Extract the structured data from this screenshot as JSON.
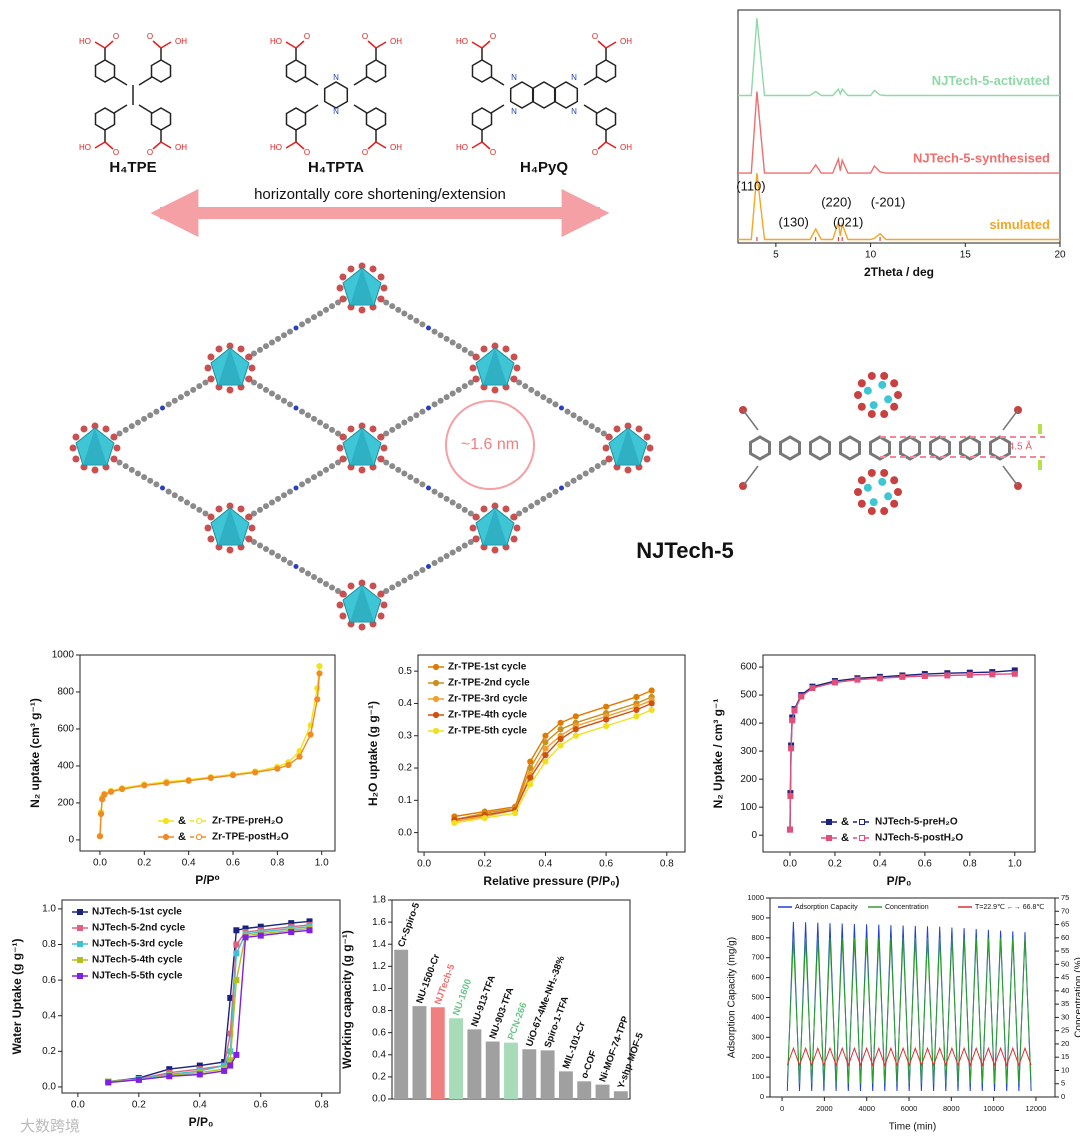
{
  "figure": {
    "molecules": [
      "H₄TPE",
      "H₄TPTA",
      "H₄PyQ"
    ],
    "acid_left": "HO",
    "acid_right": "OH",
    "nitrogen": "N",
    "arrow_text": "horizontally core shortening/extension",
    "pore_size": "~1.6 nm",
    "framework_name": "NJTech-5",
    "distance": "4.5 Å",
    "watermark": "大数跨境"
  },
  "chart_data": [
    {
      "type": "line",
      "xlabel": "2Theta / deg",
      "xlim": [
        3,
        20
      ],
      "xticks": [
        5,
        10,
        15,
        20
      ],
      "ylim": [
        0,
        100
      ],
      "x": [
        3,
        3.7,
        4.0,
        4.4,
        6.8,
        7.1,
        7.4,
        8.0,
        8.3,
        8.4,
        8.5,
        8.8,
        10.0,
        10.2,
        10.5,
        10.8,
        13,
        20
      ],
      "series": [
        {
          "name": "NJTech-5-activated",
          "color": "#8fd9a8",
          "values": [
            63.3,
            63.3,
            96.5,
            63.3,
            63.3,
            65,
            63.3,
            63.3,
            66,
            64,
            66,
            63.3,
            63.3,
            65.5,
            63.5,
            63.3,
            63.3,
            63.3
          ]
        },
        {
          "name": "NJTech-5-synthesised",
          "color": "#ef6f6f",
          "values": [
            30,
            30,
            65,
            30,
            30,
            33.5,
            30,
            30,
            36,
            31,
            35.5,
            30,
            30,
            33,
            30.5,
            30,
            30,
            30
          ]
        },
        {
          "name": "simulated",
          "color": "#f5a623",
          "values": [
            1.5,
            1.5,
            30,
            1.5,
            1.5,
            6,
            1.5,
            1.5,
            9,
            3,
            8,
            1.5,
            1.5,
            2,
            4,
            1.5,
            1.5,
            1.5
          ]
        }
      ],
      "annotations": [
        {
          "text": "(110)",
          "x": 4.0
        },
        {
          "text": "(130)",
          "x": 7.1
        },
        {
          "text": "(220)",
          "x": 8.3
        },
        {
          "text": "(021)",
          "x": 8.5
        },
        {
          "text": "(-201)",
          "x": 10.5
        }
      ]
    },
    {
      "type": "line",
      "markers": "circle",
      "xlabel": "P/P⁰",
      "ylabel": "N₂ uptake (cm³ g⁻¹)",
      "legend": "lower right",
      "legend_joiner": "&",
      "xlim": [
        -0.09,
        1.06
      ],
      "xticks": [
        {
          "value": 0,
          "label": "0.0"
        },
        0.2,
        0.4,
        0.6,
        0.8,
        {
          "value": 1,
          "label": "1.0"
        }
      ],
      "ylim": [
        -60,
        1000
      ],
      "yticks": [
        0,
        200,
        400,
        600,
        800,
        1000
      ],
      "x": [
        0,
        0.005,
        0.01,
        0.02,
        0.05,
        0.1,
        0.2,
        0.3,
        0.4,
        0.5,
        0.6,
        0.7,
        0.8,
        0.85,
        0.9,
        0.95,
        0.98,
        0.99
      ],
      "series": [
        {
          "name": "Zr-TPE-preH₂O",
          "color": "#f2e21c",
          "values": [
            20,
            150,
            230,
            250,
            265,
            280,
            300,
            315,
            325,
            340,
            355,
            370,
            395,
            420,
            480,
            620,
            820,
            940
          ]
        },
        {
          "name": "Zr-TPE-postH₂O",
          "color": "#f08a24",
          "values": [
            20,
            140,
            220,
            245,
            260,
            275,
            295,
            308,
            320,
            335,
            350,
            365,
            385,
            405,
            450,
            570,
            760,
            900
          ]
        }
      ]
    },
    {
      "type": "line",
      "markers": "circle",
      "xlabel": "Relative pressure (P/P₀)",
      "ylabel": "H₂O uptake (g g⁻¹)",
      "legend": "upper left",
      "xlim": [
        -0.02,
        0.86
      ],
      "xticks": [
        {
          "value": 0,
          "label": "0.0"
        },
        0.2,
        0.4,
        0.6,
        0.8
      ],
      "ylim": [
        -0.06,
        0.55
      ],
      "yticks": [
        {
          "value": 0,
          "label": "0.0"
        },
        0.1,
        0.2,
        0.3,
        0.4,
        0.5
      ],
      "x": [
        0.1,
        0.2,
        0.3,
        0.35,
        0.4,
        0.45,
        0.5,
        0.6,
        0.7,
        0.75
      ],
      "series": [
        {
          "name": "Zr-TPE-1st cycle",
          "color": "#e07b00",
          "values": [
            0.05,
            0.065,
            0.08,
            0.22,
            0.3,
            0.34,
            0.36,
            0.39,
            0.42,
            0.44
          ]
        },
        {
          "name": "Zr-TPE-2nd cycle",
          "color": "#c89020",
          "values": [
            0.04,
            0.06,
            0.075,
            0.2,
            0.28,
            0.32,
            0.34,
            0.37,
            0.4,
            0.42
          ]
        },
        {
          "name": "Zr-TPE-3rd cycle",
          "color": "#f0a030",
          "values": [
            0.035,
            0.05,
            0.07,
            0.18,
            0.26,
            0.3,
            0.33,
            0.36,
            0.39,
            0.41
          ]
        },
        {
          "name": "Zr-TPE-4th cycle",
          "color": "#d05010",
          "values": [
            0.04,
            0.055,
            0.07,
            0.17,
            0.24,
            0.29,
            0.32,
            0.35,
            0.38,
            0.4
          ]
        },
        {
          "name": "Zr-TPE-5th cycle",
          "color": "#f0e020",
          "values": [
            0.03,
            0.045,
            0.06,
            0.15,
            0.22,
            0.27,
            0.3,
            0.33,
            0.36,
            0.38
          ]
        }
      ]
    },
    {
      "type": "line",
      "markers": "square",
      "xlabel": "P/P₀",
      "ylabel": "N₂ Uptake / cm³ g⁻¹",
      "legend": "lower right",
      "legend_joiner": "&",
      "xlim": [
        -0.12,
        1.09
      ],
      "xticks": [
        {
          "value": 0,
          "label": "0.0"
        },
        0.2,
        0.4,
        0.6,
        0.8,
        {
          "value": 1,
          "label": "1.0"
        }
      ],
      "ylim": [
        -60,
        643
      ],
      "yticks": [
        0,
        100,
        200,
        300,
        400,
        500,
        600
      ],
      "x": [
        0,
        0.002,
        0.005,
        0.01,
        0.02,
        0.05,
        0.1,
        0.2,
        0.3,
        0.4,
        0.5,
        0.6,
        0.7,
        0.8,
        0.9,
        1.0
      ],
      "series": [
        {
          "name": "NJTech-5-preH₂O",
          "color": "#1a237e",
          "values": [
            20,
            150,
            320,
            420,
            450,
            500,
            530,
            550,
            560,
            565,
            570,
            575,
            578,
            580,
            582,
            588
          ]
        },
        {
          "name": "NJTech-5-postH₂O",
          "color": "#e0507a",
          "values": [
            20,
            140,
            310,
            410,
            445,
            495,
            525,
            545,
            555,
            560,
            565,
            568,
            570,
            572,
            574,
            576
          ]
        }
      ]
    },
    {
      "type": "line",
      "markers": "square",
      "xlabel": "P/P₀",
      "ylabel": "Water Uptake (g g⁻¹)",
      "legend": "upper left",
      "xlim": [
        -0.052,
        0.86
      ],
      "xticks": [
        {
          "value": 0,
          "label": "0.0"
        },
        0.2,
        0.4,
        0.6,
        0.8
      ],
      "ylim": [
        -0.034,
        1.05
      ],
      "yticks": [
        {
          "value": 0,
          "label": "0.0"
        },
        0.2,
        0.4,
        0.6,
        0.8,
        {
          "value": 1,
          "label": "1.0"
        }
      ],
      "x": [
        0.1,
        0.2,
        0.3,
        0.4,
        0.48,
        0.5,
        0.52,
        0.55,
        0.6,
        0.7,
        0.76
      ],
      "series": [
        {
          "name": "NJTech-5-1st cycle",
          "color": "#1a237e",
          "values": [
            0.03,
            0.05,
            0.1,
            0.12,
            0.14,
            0.5,
            0.88,
            0.89,
            0.9,
            0.92,
            0.93
          ]
        },
        {
          "name": "NJTech-5-2nd cycle",
          "color": "#e06080",
          "values": [
            0.03,
            0.045,
            0.08,
            0.1,
            0.12,
            0.3,
            0.8,
            0.87,
            0.88,
            0.9,
            0.91
          ]
        },
        {
          "name": "NJTech-5-3rd cycle",
          "color": "#40c0d0",
          "values": [
            0.03,
            0.045,
            0.07,
            0.09,
            0.12,
            0.2,
            0.75,
            0.86,
            0.87,
            0.89,
            0.9
          ]
        },
        {
          "name": "NJTech-5-4th cycle",
          "color": "#b0c020",
          "values": [
            0.03,
            0.04,
            0.065,
            0.08,
            0.1,
            0.15,
            0.6,
            0.85,
            0.86,
            0.88,
            0.89
          ]
        },
        {
          "name": "NJTech-5-5th cycle",
          "color": "#8020e0",
          "values": [
            0.025,
            0.04,
            0.06,
            0.07,
            0.09,
            0.12,
            0.18,
            0.84,
            0.85,
            0.87,
            0.88
          ]
        }
      ]
    },
    {
      "type": "bar",
      "ylabel": "Working capacity (g g⁻¹)",
      "ylim": [
        0,
        1.8
      ],
      "yticks": [
        {
          "value": 0,
          "label": "0.0"
        },
        0.2,
        0.4,
        0.6,
        0.8,
        {
          "value": 1,
          "label": "1.0"
        },
        1.2,
        1.4,
        1.6,
        1.8
      ],
      "categories": [
        "Cr-Spiro-5",
        "NU-1500-Cr",
        "NJTech-5",
        "NU-1600",
        "NU-913-TFA",
        "NU-903-TFA",
        "PCN-266",
        "UiO-67-4Me-NH₂-38%",
        "Spiro-1-TFA",
        "MIL-101-Cr",
        "o-COF",
        "Ni-MOF-74-TPP",
        "Y-shp-MOF-5"
      ],
      "values": [
        1.35,
        0.84,
        0.83,
        0.73,
        0.63,
        0.52,
        0.51,
        0.45,
        0.44,
        0.25,
        0.16,
        0.13,
        0.07
      ],
      "colors": [
        "#a0a0a0",
        "#a0a0a0",
        "#f08080",
        "#a8dcb8",
        "#a0a0a0",
        "#a0a0a0",
        "#a8dcb8",
        "#a0a0a0",
        "#a0a0a0",
        "#a0a0a0",
        "#a0a0a0",
        "#a0a0a0",
        "#a0a0a0"
      ],
      "label_colors": [
        "#111111",
        "#111111",
        "#ef6f6f",
        "#6cc48a",
        "#111111",
        "#111111",
        "#6cc48a",
        "#111111",
        "#111111",
        "#111111",
        "#111111",
        "#111111",
        "#111111"
      ]
    },
    {
      "type": "line",
      "xlabel": "Time (min)",
      "ylabel": "Adsorption Capacity (mg/g)",
      "y2label": "Concentration (%)",
      "legend": "top",
      "xlim": [
        -570,
        12900
      ],
      "xticks": [
        0,
        2000,
        4000,
        6000,
        8000,
        10000,
        12000
      ],
      "ylim": [
        0,
        1000
      ],
      "yticks": [
        0,
        100,
        200,
        300,
        400,
        500,
        600,
        700,
        800,
        900,
        1000
      ],
      "y2lim": [
        0,
        75
      ],
      "y2ticks": [
        0,
        5,
        10,
        15,
        20,
        25,
        30,
        35,
        40,
        45,
        50,
        55,
        60,
        65,
        70,
        75
      ],
      "x": [
        250,
        538,
        826,
        1114,
        1402,
        1690,
        1978,
        2266,
        2554,
        2842,
        3130,
        3418,
        3706,
        3994,
        4282,
        4570,
        4858,
        5146,
        5434,
        5722,
        6010,
        6298,
        6586,
        6874,
        7162,
        7450,
        7738,
        8026,
        8314,
        8602,
        8890,
        9178,
        9466,
        9754,
        10042,
        10330,
        10618,
        10906,
        11194,
        11482,
        11770
      ],
      "series": [
        {
          "name": "Adsorption Capacity",
          "color": "#1f3fd6",
          "values": [
            30,
            880,
            30,
            878,
            30,
            876,
            30,
            874,
            30,
            872,
            30,
            870,
            30,
            868,
            30,
            866,
            30,
            864,
            30,
            862,
            30,
            860,
            30,
            858,
            30,
            856,
            30,
            852,
            30,
            848,
            30,
            844,
            30,
            840,
            30,
            836,
            30,
            832,
            30,
            828,
            30
          ]
        },
        {
          "name": "Concentration",
          "color": "#2ca02c",
          "axis": "y2",
          "values": [
            5,
            60,
            5,
            60,
            5,
            60,
            5,
            60,
            5,
            60,
            5,
            60,
            5,
            60,
            5,
            60,
            5,
            60,
            5,
            60,
            5,
            60,
            5,
            60,
            5,
            60,
            5,
            60,
            5,
            60,
            5,
            60,
            5,
            60,
            5,
            60,
            5,
            60,
            5,
            60,
            5
          ]
        },
        {
          "name": "T=22.9℃ ←→ 66.8℃",
          "color": "#e03030",
          "values": [
            160,
            245,
            160,
            245,
            160,
            245,
            160,
            245,
            160,
            245,
            160,
            245,
            160,
            245,
            160,
            245,
            160,
            245,
            160,
            245,
            160,
            245,
            160,
            245,
            160,
            245,
            160,
            245,
            160,
            245,
            160,
            245,
            160,
            245,
            160,
            245,
            160,
            245,
            160,
            245,
            160
          ]
        }
      ]
    }
  ]
}
